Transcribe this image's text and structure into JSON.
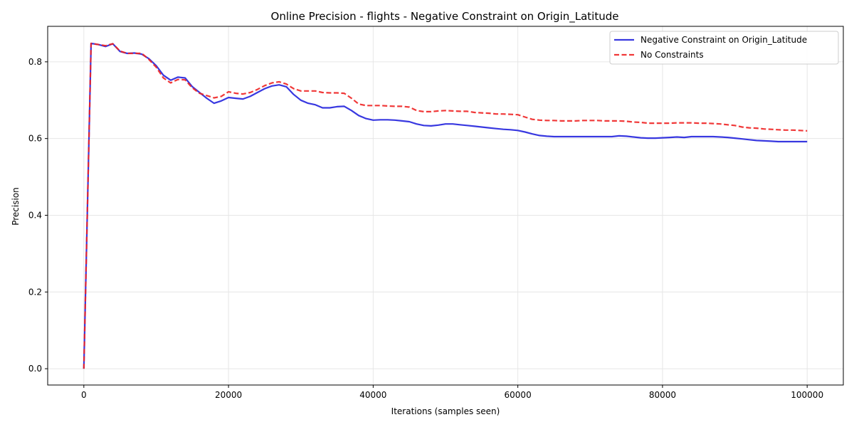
{
  "chart_data": {
    "type": "line",
    "title": "Online Precision - flights - Negative Constraint on Origin_Latitude",
    "xlabel": "Iterations (samples seen)",
    "ylabel": "Precision",
    "xlim": [
      -5000,
      105000
    ],
    "ylim": [
      -0.0425,
      0.8925
    ],
    "xticks": [
      0,
      20000,
      40000,
      60000,
      80000,
      100000
    ],
    "yticks": [
      0.0,
      0.2,
      0.4,
      0.6,
      0.8
    ],
    "xtick_labels": [
      "0",
      "20000",
      "40000",
      "60000",
      "80000",
      "100000"
    ],
    "ytick_labels": [
      "0.0",
      "0.2",
      "0.4",
      "0.6",
      "0.8"
    ],
    "grid": true,
    "legend_position": "upper right",
    "x": [
      0,
      1000,
      2000,
      3000,
      4000,
      5000,
      6000,
      7000,
      8000,
      9000,
      10000,
      11000,
      12000,
      13000,
      14000,
      15000,
      16000,
      17000,
      18000,
      19000,
      20000,
      21000,
      22000,
      23000,
      24000,
      25000,
      26000,
      27000,
      28000,
      29000,
      30000,
      31000,
      32000,
      33000,
      34000,
      35000,
      36000,
      37000,
      38000,
      39000,
      40000,
      41000,
      42000,
      43000,
      44000,
      45000,
      46000,
      47000,
      48000,
      49000,
      50000,
      51000,
      52000,
      53000,
      54000,
      55000,
      56000,
      57000,
      58000,
      59000,
      60000,
      61000,
      62000,
      63000,
      64000,
      65000,
      66000,
      67000,
      68000,
      69000,
      70000,
      71000,
      72000,
      73000,
      74000,
      75000,
      76000,
      77000,
      78000,
      79000,
      80000,
      81000,
      82000,
      83000,
      84000,
      85000,
      86000,
      87000,
      88000,
      89000,
      90000,
      91000,
      92000,
      93000,
      94000,
      95000,
      96000,
      97000,
      98000,
      99000,
      100000
    ],
    "series": [
      {
        "name": "Negative Constraint on Origin_Latitude",
        "color": "#2222dd",
        "style": "solid",
        "values": [
          0.0,
          0.848,
          0.845,
          0.84,
          0.847,
          0.827,
          0.822,
          0.823,
          0.82,
          0.808,
          0.79,
          0.765,
          0.752,
          0.76,
          0.758,
          0.735,
          0.72,
          0.705,
          0.692,
          0.698,
          0.707,
          0.705,
          0.703,
          0.71,
          0.72,
          0.73,
          0.737,
          0.74,
          0.735,
          0.715,
          0.7,
          0.692,
          0.688,
          0.68,
          0.68,
          0.683,
          0.684,
          0.673,
          0.66,
          0.652,
          0.648,
          0.649,
          0.649,
          0.648,
          0.646,
          0.644,
          0.638,
          0.634,
          0.633,
          0.635,
          0.638,
          0.638,
          0.636,
          0.634,
          0.632,
          0.63,
          0.628,
          0.626,
          0.624,
          0.623,
          0.621,
          0.617,
          0.612,
          0.608,
          0.606,
          0.605,
          0.605,
          0.605,
          0.605,
          0.605,
          0.605,
          0.605,
          0.605,
          0.605,
          0.607,
          0.606,
          0.604,
          0.602,
          0.601,
          0.601,
          0.602,
          0.603,
          0.604,
          0.603,
          0.605,
          0.605,
          0.605,
          0.605,
          0.604,
          0.603,
          0.601,
          0.599,
          0.597,
          0.595,
          0.594,
          0.593,
          0.592,
          0.592,
          0.592,
          0.592,
          0.592
        ]
      },
      {
        "name": "No Constraints",
        "color": "#ee2222",
        "style": "dashed",
        "values": [
          0.0,
          0.848,
          0.845,
          0.842,
          0.847,
          0.828,
          0.822,
          0.822,
          0.822,
          0.806,
          0.786,
          0.758,
          0.745,
          0.754,
          0.753,
          0.732,
          0.718,
          0.712,
          0.706,
          0.71,
          0.722,
          0.718,
          0.716,
          0.72,
          0.728,
          0.738,
          0.745,
          0.748,
          0.742,
          0.73,
          0.724,
          0.724,
          0.724,
          0.72,
          0.719,
          0.719,
          0.718,
          0.705,
          0.69,
          0.686,
          0.686,
          0.686,
          0.685,
          0.684,
          0.684,
          0.682,
          0.673,
          0.67,
          0.67,
          0.672,
          0.673,
          0.672,
          0.671,
          0.671,
          0.668,
          0.667,
          0.666,
          0.664,
          0.664,
          0.663,
          0.662,
          0.656,
          0.65,
          0.648,
          0.647,
          0.647,
          0.646,
          0.646,
          0.646,
          0.647,
          0.647,
          0.647,
          0.646,
          0.646,
          0.646,
          0.645,
          0.643,
          0.642,
          0.64,
          0.64,
          0.64,
          0.64,
          0.641,
          0.641,
          0.641,
          0.64,
          0.64,
          0.639,
          0.638,
          0.636,
          0.634,
          0.63,
          0.628,
          0.627,
          0.625,
          0.624,
          0.623,
          0.622,
          0.622,
          0.621,
          0.62
        ]
      }
    ]
  }
}
